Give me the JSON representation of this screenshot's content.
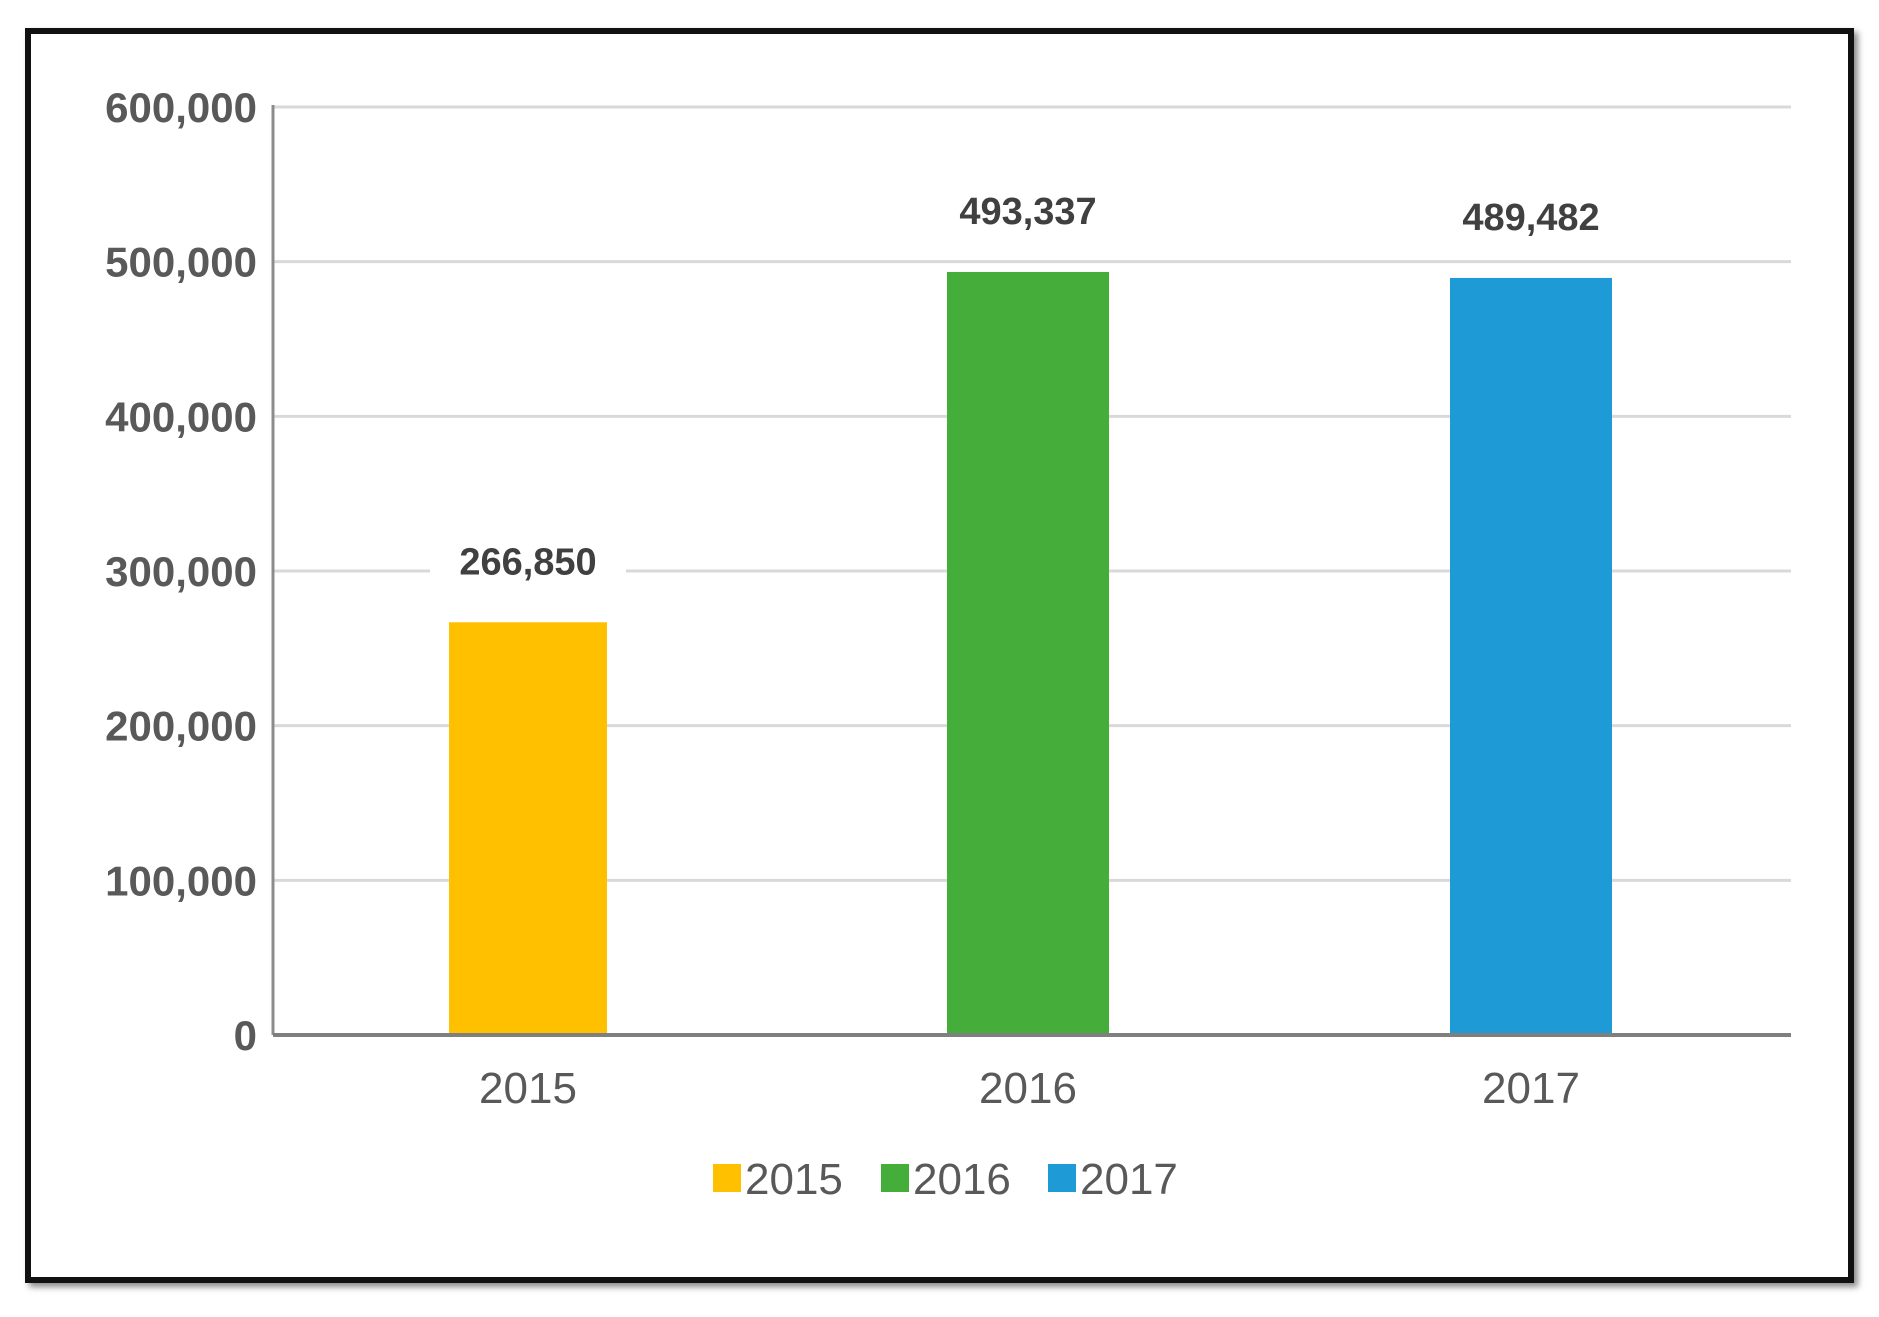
{
  "chart_data": {
    "type": "bar",
    "categories": [
      "2015",
      "2016",
      "2017"
    ],
    "values": [
      266850,
      493337,
      489482
    ],
    "data_labels": [
      "266,850",
      "493,337",
      "489,482"
    ],
    "colors": [
      "#FFC000",
      "#45AD3A",
      "#1E9BD7"
    ],
    "ylim": [
      0,
      600000
    ],
    "yticks": [
      0,
      100000,
      200000,
      300000,
      400000,
      500000,
      600000
    ],
    "ytick_labels": [
      "0",
      "100,000",
      "200,000",
      "300,000",
      "400,000",
      "500,000",
      "600,000"
    ],
    "grid": true,
    "legend": {
      "position": "bottom",
      "entries": [
        "2015",
        "2016",
        "2017"
      ]
    }
  }
}
